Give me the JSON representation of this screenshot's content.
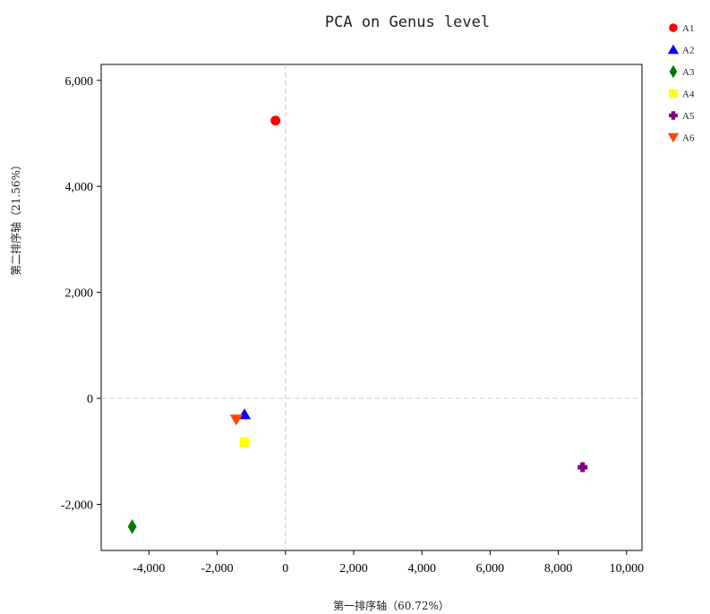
{
  "chart_data": {
    "type": "scatter",
    "title": "PCA on Genus level",
    "xlabel": "第一排序轴（60.72%）",
    "ylabel": "第二排序轴（21.56%）",
    "xlim": [
      -5400,
      10450
    ],
    "ylim": [
      -2870,
      6300
    ],
    "xticks": [
      -4000,
      -2000,
      0,
      2000,
      4000,
      6000,
      8000,
      10000
    ],
    "xtick_labels": [
      "-4,000",
      "-2,000",
      "0",
      "2,000",
      "4,000",
      "6,000",
      "8,000",
      "10,000"
    ],
    "yticks": [
      -2000,
      0,
      2000,
      4000,
      6000
    ],
    "ytick_labels": [
      "-2,000",
      "0",
      "2,000",
      "4,000",
      "6,000"
    ],
    "grid": false,
    "reference_lines": {
      "x": 0,
      "y": 0,
      "style": "dashed"
    },
    "legend_position": "top-right outside",
    "series": [
      {
        "name": "A1",
        "x": -290,
        "y": 5240,
        "marker": "circle",
        "color": "#ff0000"
      },
      {
        "name": "A2",
        "x": -1200,
        "y": -300,
        "marker": "triangle-up",
        "color": "#0000ff"
      },
      {
        "name": "A3",
        "x": -4490,
        "y": -2420,
        "marker": "diamond",
        "color": "#007a00"
      },
      {
        "name": "A4",
        "x": -1200,
        "y": -830,
        "marker": "square",
        "color": "#ffff00"
      },
      {
        "name": "A5",
        "x": 8710,
        "y": -1300,
        "marker": "plus",
        "color": "#800080"
      },
      {
        "name": "A6",
        "x": -1440,
        "y": -400,
        "marker": "triangle-down",
        "color": "#ff4500"
      }
    ]
  }
}
